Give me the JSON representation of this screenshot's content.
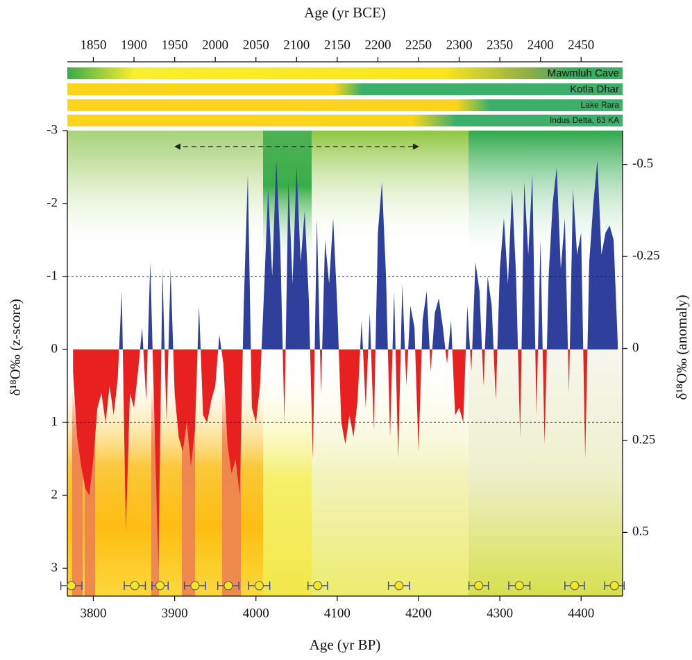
{
  "chart_data": {
    "type": "area",
    "x_label": "Age (yr BP)",
    "x2_label": "Age (yr BCE)",
    "y_label": "δ¹⁸O‰ (z-score)",
    "y2_label": "δ¹⁸O‰ (anomaly)",
    "xlim": [
      3768,
      4451
    ],
    "xticks": [
      3800,
      3900,
      4000,
      4100,
      4200,
      4300,
      4400
    ],
    "x2lim": [
      1818,
      2501
    ],
    "x2ticks": [
      1850,
      1900,
      1950,
      2000,
      2050,
      2100,
      2150,
      2200,
      2250,
      2300,
      2350,
      2400,
      2450
    ],
    "ylim": [
      3.38,
      -3
    ],
    "yticks": [
      -3,
      -2,
      -1,
      0,
      1,
      2,
      3
    ],
    "y2lim": [
      0.673,
      -0.592
    ],
    "y2ticks": [
      -0.5,
      -0.25,
      0,
      0.25,
      0.5
    ],
    "reference_lines": [
      -1,
      1
    ],
    "color_negative": "#2e3f9c",
    "color_positive": "#e8201f",
    "records": [
      "Mawmluh Cave",
      "Kotla Dhar",
      "Lake Rara",
      "Indus Delta, 63 KA"
    ],
    "x": [
      3775,
      3780,
      3785,
      3790,
      3795,
      3800,
      3805,
      3810,
      3815,
      3820,
      3825,
      3830,
      3835,
      3840,
      3845,
      3850,
      3855,
      3860,
      3865,
      3870,
      3875,
      3880,
      3885,
      3890,
      3895,
      3900,
      3905,
      3910,
      3915,
      3920,
      3925,
      3930,
      3935,
      3940,
      3945,
      3950,
      3955,
      3960,
      3965,
      3970,
      3975,
      3980,
      3985,
      3990,
      3995,
      4000,
      4005,
      4010,
      4015,
      4020,
      4025,
      4030,
      4035,
      4040,
      4045,
      4050,
      4055,
      4060,
      4065,
      4070,
      4075,
      4080,
      4085,
      4090,
      4095,
      4100,
      4105,
      4110,
      4115,
      4120,
      4125,
      4130,
      4135,
      4140,
      4145,
      4150,
      4155,
      4160,
      4165,
      4170,
      4175,
      4180,
      4185,
      4190,
      4195,
      4200,
      4205,
      4210,
      4215,
      4220,
      4225,
      4230,
      4235,
      4240,
      4245,
      4250,
      4255,
      4260,
      4265,
      4270,
      4275,
      4280,
      4285,
      4290,
      4295,
      4300,
      4305,
      4310,
      4315,
      4320,
      4325,
      4330,
      4335,
      4340,
      4345,
      4350,
      4355,
      4360,
      4365,
      4370,
      4375,
      4380,
      4385,
      4390,
      4395,
      4400,
      4405,
      4410,
      4415,
      4420,
      4425,
      4430,
      4435,
      4440,
      4445
    ],
    "values": [
      0.3,
      1.2,
      1.6,
      1.9,
      2.0,
      1.5,
      0.8,
      0.6,
      1.0,
      0.5,
      0.9,
      0.4,
      -0.8,
      2.5,
      0.6,
      0.8,
      0.3,
      -0.3,
      0.7,
      -1.2,
      0.9,
      3.0,
      -1.1,
      1.0,
      -1.1,
      0.6,
      1.2,
      1.4,
      1.0,
      1.6,
      1.1,
      -0.6,
      0.9,
      1.0,
      0.7,
      0.5,
      -0.2,
      0.2,
      1.3,
      1.7,
      1.5,
      2.0,
      -0.6,
      -2.4,
      0.8,
      1.0,
      0.5,
      -0.8,
      -2.2,
      -1.0,
      -2.6,
      -1.4,
      1.0,
      -2.3,
      -0.9,
      -2.5,
      -1.2,
      -1.9,
      -0.7,
      1.5,
      -1.8,
      0.6,
      -1.5,
      -0.9,
      -1.8,
      -0.6,
      1.0,
      1.3,
      0.9,
      1.2,
      0.7,
      -0.4,
      0.8,
      -0.5,
      1.1,
      -1.6,
      -2.3,
      -1.0,
      1.2,
      -0.8,
      1.5,
      -0.9,
      0.5,
      -0.6,
      -0.3,
      1.4,
      -0.4,
      -0.8,
      0.3,
      -0.5,
      -0.7,
      -0.3,
      0.2,
      -0.4,
      0.9,
      0.8,
      1.0,
      -0.6,
      0.3,
      -1.2,
      -0.8,
      0.5,
      -1.0,
      -0.6,
      0.7,
      -1.1,
      -1.8,
      -0.9,
      -2.2,
      -1.0,
      1.2,
      -2.3,
      -1.3,
      -2.4,
      0.9,
      -1.5,
      1.3,
      -1.0,
      -2.0,
      -2.5,
      -1.1,
      -1.8,
      0.6,
      -2.2,
      -1.3,
      -1.6,
      1.5,
      -1.2,
      -2.0,
      -2.6,
      -1.3,
      -1.6,
      -1.7,
      -1.5,
      -0.1
    ],
    "age_controls": {
      "x": [
        3773,
        3851,
        3882,
        3925,
        3966,
        4004,
        4076,
        4176,
        4274,
        4324,
        4392,
        4441
      ],
      "errors": [
        13,
        13,
        10,
        13,
        13,
        13,
        12,
        13,
        12,
        13,
        12,
        12
      ],
      "color": "#f5e625",
      "error_color": "#3b4aa0"
    }
  }
}
